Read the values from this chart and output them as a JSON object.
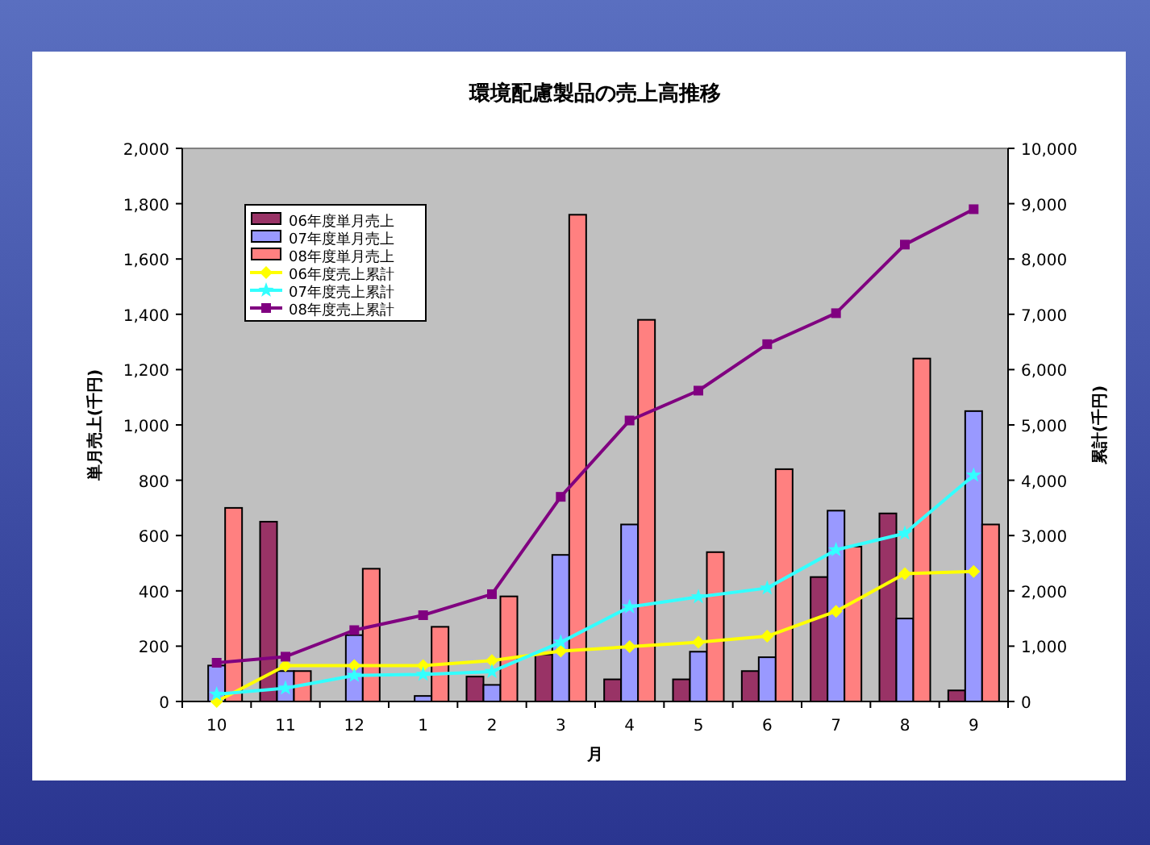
{
  "chart_data": {
    "type": "bar",
    "title": "環境配慮製品の売上高推移",
    "xlabel": "月",
    "ylabel": "単月売上(千円)",
    "y2label": "累計(千円)",
    "categories": [
      "10",
      "11",
      "12",
      "1",
      "2",
      "3",
      "4",
      "5",
      "6",
      "7",
      "8",
      "9"
    ],
    "series": [
      {
        "name": "06年度単月売上",
        "color": "#993366",
        "values": [
          0,
          650,
          0,
          0,
          90,
          170,
          80,
          80,
          110,
          450,
          680,
          40
        ]
      },
      {
        "name": "07年度単月売上",
        "color": "#9999ff",
        "values": [
          130,
          110,
          240,
          20,
          60,
          530,
          640,
          180,
          160,
          690,
          300,
          1050
        ]
      },
      {
        "name": "08年度単月売上",
        "color": "#ff8080",
        "values": [
          700,
          110,
          480,
          270,
          380,
          1760,
          1380,
          540,
          840,
          560,
          1240,
          640
        ]
      },
      {
        "name": "06年度売上累計",
        "type": "line",
        "axis": "y2",
        "marker": "diamond",
        "color": "#ffff00",
        "values": [
          0,
          650,
          650,
          650,
          740,
          910,
          990,
          1070,
          1180,
          1630,
          2310,
          2350
        ]
      },
      {
        "name": "07年度売上累計",
        "type": "line",
        "axis": "y2",
        "marker": "star",
        "color": "#33ffff",
        "values": [
          130,
          240,
          470,
          490,
          540,
          1070,
          1710,
          1890,
          2050,
          2740,
          3040,
          4090
        ]
      },
      {
        "name": "08年度売上累計",
        "type": "line",
        "axis": "y2",
        "marker": "square",
        "color": "#800080",
        "values": [
          700,
          810,
          1290,
          1560,
          1940,
          3700,
          5080,
          5620,
          6460,
          7020,
          8260,
          8900
        ]
      }
    ],
    "ylim": [
      0,
      2000
    ],
    "yticks": [
      0,
      {
        "value": 200,
        "label": "200"
      },
      {
        "value": 400,
        "label": "400"
      },
      {
        "value": 600,
        "label": "600"
      },
      {
        "value": 800,
        "label": "800"
      },
      {
        "value": 1000,
        "label": "1,000"
      },
      {
        "value": 1200,
        "label": "1,200"
      },
      {
        "value": 1400,
        "label": "1,400"
      },
      {
        "value": 1600,
        "label": "1,600"
      },
      {
        "value": 1800,
        "label": "1,800"
      },
      {
        "value": 2000,
        "label": "2,000"
      }
    ],
    "y2lim": [
      0,
      10000
    ],
    "y2ticks": [
      0,
      {
        "value": 1000,
        "label": "1,000"
      },
      {
        "value": 2000,
        "label": "2,000"
      },
      {
        "value": 3000,
        "label": "3,000"
      },
      {
        "value": 4000,
        "label": "4,000"
      },
      {
        "value": 5000,
        "label": "5,000"
      },
      {
        "value": 6000,
        "label": "6,000"
      },
      {
        "value": 7000,
        "label": "7,000"
      },
      {
        "value": 8000,
        "label": "8,000"
      },
      {
        "value": 9000,
        "label": "9,000"
      },
      {
        "value": 10000,
        "label": "10,000"
      }
    ],
    "legend": "top left",
    "grid": false
  }
}
